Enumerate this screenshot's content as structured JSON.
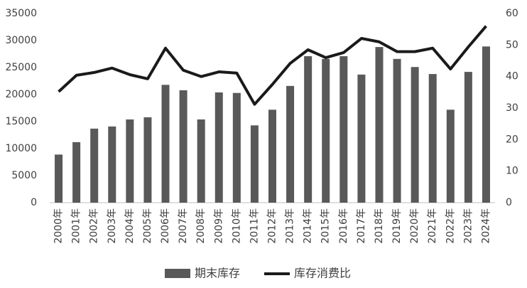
{
  "chart_data": {
    "type": "bar-line",
    "categories": [
      "2000年",
      "2001年",
      "2002年",
      "2003年",
      "2004年",
      "2005年",
      "2006年",
      "2007年",
      "2008年",
      "2009年",
      "2010年",
      "2011年",
      "2012年",
      "2013年",
      "2014年",
      "2015年",
      "2016年",
      "2017年",
      "2018年",
      "2019年",
      "2020年",
      "2021年",
      "2022年",
      "2023年",
      "2024年"
    ],
    "series": [
      {
        "name": "期末库存",
        "type": "bar",
        "color": "#595959",
        "values": [
          8900,
          11200,
          13700,
          14100,
          15400,
          15800,
          21800,
          20800,
          15400,
          20400,
          20300,
          14300,
          17200,
          21600,
          27100,
          26600,
          27100,
          23700,
          28800,
          26600,
          25100,
          23800,
          17200,
          24200,
          28900
        ]
      },
      {
        "name": "库存消费比",
        "type": "line",
        "axis": "y2",
        "color": "#1a1a1a",
        "values": [
          35.2,
          40.4,
          41.3,
          42.7,
          40.6,
          39.3,
          49.0,
          42.0,
          40.0,
          41.5,
          41.1,
          31.2,
          37.5,
          44.2,
          48.5,
          46.0,
          47.6,
          52.1,
          51.0,
          47.9,
          47.9,
          49.0,
          42.4,
          49.4,
          56.0
        ]
      }
    ],
    "ylim": [
      0,
      35000
    ],
    "yticks": [
      0,
      5000,
      10000,
      15000,
      20000,
      25000,
      30000,
      35000
    ],
    "y2lim": [
      0,
      60
    ],
    "y2ticks": [
      0,
      10,
      20,
      30,
      40,
      50,
      60
    ],
    "grid": false,
    "legend": "bottom"
  }
}
